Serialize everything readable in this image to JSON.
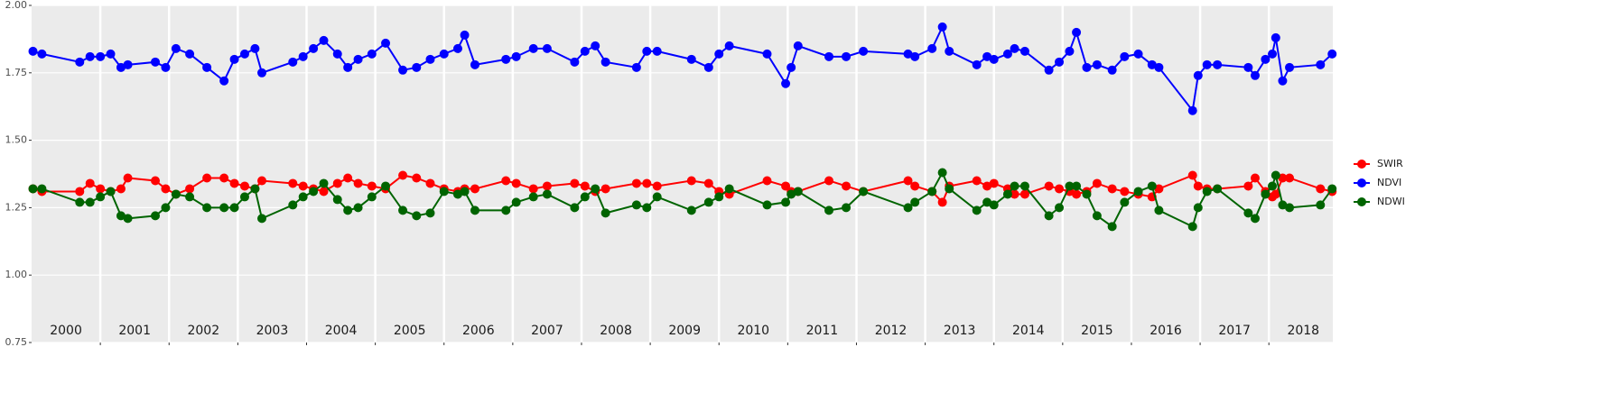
{
  "chart_data": {
    "type": "line",
    "x": [
      2000.02,
      2000.15,
      2000.7,
      2000.85,
      2001.0,
      2001.15,
      2001.3,
      2001.4,
      2001.8,
      2001.95,
      2002.1,
      2002.3,
      2002.55,
      2002.8,
      2002.95,
      2003.1,
      2003.25,
      2003.35,
      2003.8,
      2003.95,
      2004.1,
      2004.25,
      2004.45,
      2004.6,
      2004.75,
      2004.95,
      2005.15,
      2005.4,
      2005.6,
      2005.8,
      2006.0,
      2006.2,
      2006.3,
      2006.45,
      2006.9,
      2007.05,
      2007.3,
      2007.5,
      2007.9,
      2008.05,
      2008.2,
      2008.35,
      2008.8,
      2008.95,
      2009.1,
      2009.6,
      2009.85,
      2010.0,
      2010.15,
      2010.7,
      2010.97,
      2011.05,
      2011.15,
      2011.6,
      2011.85,
      2012.1,
      2012.75,
      2012.85,
      2013.1,
      2013.25,
      2013.35,
      2013.75,
      2013.9,
      2014.0,
      2014.2,
      2014.3,
      2014.45,
      2014.8,
      2014.95,
      2015.1,
      2015.2,
      2015.35,
      2015.5,
      2015.72,
      2015.9,
      2016.1,
      2016.3,
      2016.4,
      2016.89,
      2016.97,
      2017.1,
      2017.25,
      2017.7,
      2017.8,
      2017.95,
      2018.05,
      2018.1,
      2018.2,
      2018.3,
      2018.75,
      2018.92
    ],
    "series": [
      {
        "name": "SWIR",
        "color": "#ff0000",
        "values": [
          1.32,
          1.31,
          1.31,
          1.34,
          1.32,
          1.31,
          1.32,
          1.36,
          1.35,
          1.32,
          1.3,
          1.32,
          1.36,
          1.36,
          1.34,
          1.33,
          1.32,
          1.35,
          1.34,
          1.33,
          1.32,
          1.31,
          1.34,
          1.36,
          1.34,
          1.33,
          1.32,
          1.37,
          1.36,
          1.34,
          1.32,
          1.31,
          1.32,
          1.32,
          1.35,
          1.34,
          1.32,
          1.33,
          1.34,
          1.33,
          1.31,
          1.32,
          1.34,
          1.34,
          1.33,
          1.35,
          1.34,
          1.31,
          1.3,
          1.35,
          1.33,
          1.31,
          1.31,
          1.35,
          1.33,
          1.31,
          1.35,
          1.33,
          1.31,
          1.27,
          1.33,
          1.35,
          1.33,
          1.34,
          1.32,
          1.3,
          1.3,
          1.33,
          1.32,
          1.31,
          1.3,
          1.31,
          1.34,
          1.32,
          1.31,
          1.3,
          1.29,
          1.32,
          1.37,
          1.33,
          1.32,
          1.32,
          1.33,
          1.36,
          1.31,
          1.29,
          1.3,
          1.36,
          1.36,
          1.32,
          1.31
        ]
      },
      {
        "name": "NDVI",
        "color": "#0000ff",
        "values": [
          1.83,
          1.82,
          1.79,
          1.81,
          1.81,
          1.82,
          1.77,
          1.78,
          1.79,
          1.77,
          1.84,
          1.82,
          1.77,
          1.72,
          1.8,
          1.82,
          1.84,
          1.75,
          1.79,
          1.81,
          1.84,
          1.87,
          1.82,
          1.77,
          1.8,
          1.82,
          1.86,
          1.76,
          1.77,
          1.8,
          1.82,
          1.84,
          1.89,
          1.78,
          1.8,
          1.81,
          1.84,
          1.84,
          1.79,
          1.83,
          1.85,
          1.79,
          1.77,
          1.83,
          1.83,
          1.8,
          1.77,
          1.82,
          1.85,
          1.82,
          1.71,
          1.77,
          1.85,
          1.81,
          1.81,
          1.83,
          1.82,
          1.81,
          1.84,
          1.92,
          1.83,
          1.78,
          1.81,
          1.8,
          1.82,
          1.84,
          1.83,
          1.76,
          1.79,
          1.83,
          1.9,
          1.77,
          1.78,
          1.76,
          1.81,
          1.82,
          1.78,
          1.77,
          1.61,
          1.74,
          1.78,
          1.78,
          1.77,
          1.74,
          1.8,
          1.82,
          1.88,
          1.72,
          1.77,
          1.78,
          1.82
        ]
      },
      {
        "name": "NDWI",
        "color": "#006400",
        "values": [
          1.32,
          1.32,
          1.27,
          1.27,
          1.29,
          1.31,
          1.22,
          1.21,
          1.22,
          1.25,
          1.3,
          1.29,
          1.25,
          1.25,
          1.25,
          1.29,
          1.32,
          1.21,
          1.26,
          1.29,
          1.31,
          1.34,
          1.28,
          1.24,
          1.25,
          1.29,
          1.33,
          1.24,
          1.22,
          1.23,
          1.31,
          1.3,
          1.31,
          1.24,
          1.24,
          1.27,
          1.29,
          1.3,
          1.25,
          1.29,
          1.32,
          1.23,
          1.26,
          1.25,
          1.29,
          1.24,
          1.27,
          1.29,
          1.32,
          1.26,
          1.27,
          1.3,
          1.31,
          1.24,
          1.25,
          1.31,
          1.25,
          1.27,
          1.31,
          1.38,
          1.32,
          1.24,
          1.27,
          1.26,
          1.3,
          1.33,
          1.33,
          1.22,
          1.25,
          1.33,
          1.33,
          1.3,
          1.22,
          1.18,
          1.27,
          1.31,
          1.33,
          1.24,
          1.18,
          1.25,
          1.31,
          1.32,
          1.23,
          1.21,
          1.3,
          1.33,
          1.37,
          1.26,
          1.25,
          1.26,
          1.32
        ]
      }
    ],
    "xlim": [
      2000,
      2018.93
    ],
    "xticks": [
      2001,
      2002,
      2003,
      2004,
      2005,
      2006,
      2007,
      2008,
      2009,
      2010,
      2011,
      2012,
      2013,
      2014,
      2015,
      2016,
      2017,
      2018
    ],
    "year_labels": [
      "2000",
      "2001",
      "2002",
      "2003",
      "2004",
      "2005",
      "2006",
      "2007",
      "2008",
      "2009",
      "2010",
      "2011",
      "2012",
      "2013",
      "2014",
      "2015",
      "2016",
      "2017",
      "2018"
    ],
    "ylim": [
      0.75,
      2.0
    ],
    "yticks": [
      0.75,
      {
        "value": 1.0,
        "label": "1.00"
      },
      1.25,
      {
        "value": 1.5,
        "label": "1.50"
      },
      1.75,
      {
        "value": 2.0,
        "label": "2.00"
      }
    ],
    "grid": true,
    "legend": "right"
  }
}
